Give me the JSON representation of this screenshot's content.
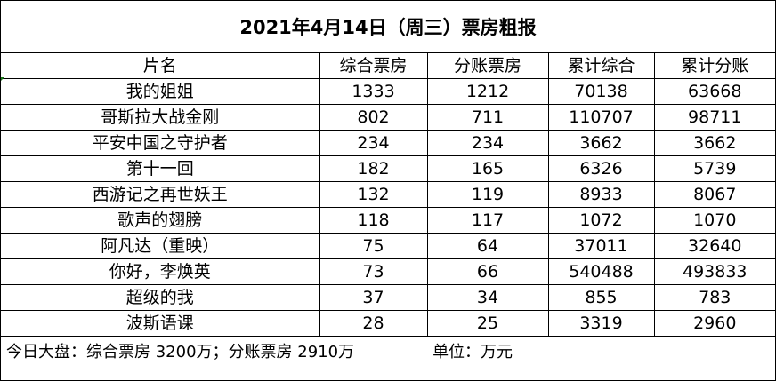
{
  "title": "2021年4月14日（周三）票房粗报",
  "headers": [
    "片名",
    "综合票房",
    "分账票房",
    "累计综合",
    "累计分账"
  ],
  "rows": [
    [
      "我的姐姐",
      "1333",
      "1212",
      "70138",
      "63668"
    ],
    [
      "哥斯拉大战金刚",
      "802",
      "711",
      "110707",
      "98711"
    ],
    [
      "平安中国之守护者",
      "234",
      "234",
      "3662",
      "3662"
    ],
    [
      "第十一回",
      "182",
      "165",
      "6326",
      "5739"
    ],
    [
      "西游记之再世妖王",
      "132",
      "119",
      "8933",
      "8067"
    ],
    [
      "歌声的翅膀",
      "118",
      "117",
      "1072",
      "1070"
    ],
    [
      "阿凡达（重映）",
      "75",
      "64",
      "37011",
      "32640"
    ],
    [
      "你好，李焕英",
      "73",
      "66",
      "540488",
      "493833"
    ],
    [
      "超级的我",
      "37",
      "34",
      "855",
      "783"
    ],
    [
      "波斯语课",
      "28",
      "25",
      "3319",
      "2960"
    ]
  ],
  "footer": {
    "summary": "今日大盘：综合票房 3200万；分账票房 2910万",
    "unit": "单位：万元"
  }
}
